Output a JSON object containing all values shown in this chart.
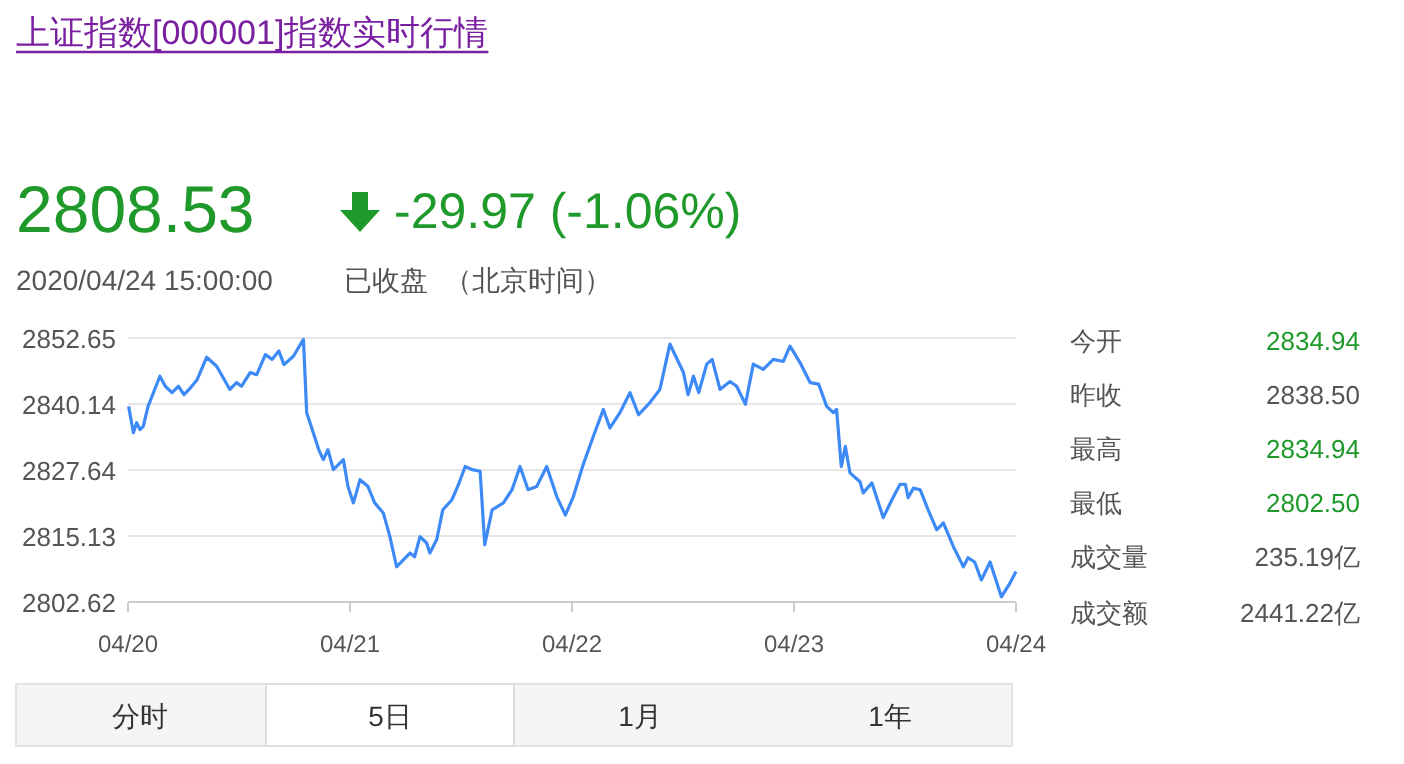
{
  "chart_data": {
    "type": "line",
    "title": "上证指数[000001]指数实时行情",
    "annotations": [
      "2808.53",
      "-29.97 (-1.06%)",
      "2020/04/24 15:00:00",
      "已收盘",
      "（北京时间）",
      "今开",
      "2834.94",
      "昨收",
      "2838.50",
      "最高",
      "2834.94",
      "最低",
      "2802.50",
      "成交量",
      "235.19亿",
      "成交额",
      "2441.22亿",
      "分时",
      "5日",
      "1月",
      "1年"
    ],
    "xlim": [
      "2020-04-20T00:00",
      "2020-04-24T00:00"
    ],
    "xticks": [
      {
        "value": "2020-04-20",
        "label": "04/20"
      },
      {
        "value": "2020-04-21",
        "label": "04/21"
      },
      {
        "value": "2020-04-22",
        "label": "04/22"
      },
      {
        "value": "2020-04-23",
        "label": "04/23"
      },
      {
        "value": "2020-04-24",
        "label": "04/24"
      }
    ],
    "ylim": [
      2802.62,
      2852.65
    ],
    "yticks": [
      2802.62,
      2815.13,
      2827.64,
      2840.14,
      2852.65
    ],
    "grid": "y",
    "marker": "none",
    "line_style": "solid",
    "series": [
      {
        "color": "#3d8af7",
        "x": [
          "2020-04-20T00:04",
          "2020-04-20T00:35",
          "2020-04-20T00:56",
          "2020-04-20T01:18",
          "2020-04-20T01:39",
          "2020-04-20T02:10",
          "2020-04-20T03:27",
          "2020-04-20T04:02",
          "2020-04-20T04:45",
          "2020-04-20T05:28",
          "2020-04-20T06:03",
          "2020-04-20T06:42",
          "2020-04-20T07:29",
          "2020-04-20T08:30",
          "2020-04-20T09:35",
          "2020-04-20T11:01",
          "2020-04-20T11:44",
          "2020-04-20T12:16",
          "2020-04-20T13:12",
          "2020-04-20T13:55",
          "2020-04-20T14:51",
          "2020-04-20T15:35",
          "2020-04-20T16:18",
          "2020-04-20T16:52",
          "2020-04-20T17:53",
          "2020-04-20T18:58",
          "2020-04-20T19:19",
          "2020-04-20T20:02",
          "2020-04-20T20:37",
          "2020-04-20T21:07",
          "2020-04-20T21:37",
          "2020-04-20T22:12",
          "2020-04-20T23:17",
          "2020-04-20T23:47",
          "2020-04-21T00:22",
          "2020-04-21T01:05",
          "2020-04-21T01:57",
          "2020-04-21T02:40",
          "2020-04-21T03:36",
          "2020-04-21T04:19",
          "2020-04-21T05:02",
          "2020-04-21T05:46",
          "2020-04-21T06:29",
          "2020-04-21T06:59",
          "2020-04-21T07:34",
          "2020-04-21T08:17",
          "2020-04-21T08:38",
          "2020-04-21T09:22",
          "2020-04-21T10:02",
          "2020-04-21T11:01",
          "2020-04-21T11:44",
          "2020-04-21T12:27",
          "2020-04-21T13:12",
          "2020-04-21T14:04",
          "2020-04-21T14:34",
          "2020-04-21T15:22",
          "2020-04-21T16:35",
          "2020-04-21T17:31",
          "2020-04-21T18:23",
          "2020-04-21T19:15",
          "2020-04-21T20:11",
          "2020-04-21T21:16",
          "2020-04-21T22:21",
          "2020-04-21T23:17",
          "2020-04-22T00:09",
          "2020-04-22T01:13",
          "2020-04-22T02:18",
          "2020-04-22T03:23",
          "2020-04-22T04:06",
          "2020-04-22T05:11",
          "2020-04-22T06:16",
          "2020-04-22T07:12",
          "2020-04-22T08:25",
          "2020-04-22T09:30",
          "2020-04-22T10:35",
          "2020-04-22T12:03",
          "2020-04-22T12:33",
          "2020-04-22T13:08",
          "2020-04-22T13:42",
          "2020-04-22T14:34",
          "2020-04-22T15:09",
          "2020-04-22T16:00",
          "2020-04-22T17:05",
          "2020-04-22T17:48",
          "2020-04-22T18:45",
          "2020-04-22T19:36",
          "2020-04-22T20:41",
          "2020-04-22T21:46",
          "2020-04-22T22:51",
          "2020-04-22T23:34",
          "2020-04-23T00:39",
          "2020-04-23T01:44",
          "2020-04-23T02:40",
          "2020-04-23T03:32",
          "2020-04-23T04:15",
          "2020-04-23T04:36",
          "2020-04-23T05:07",
          "2020-04-23T05:33",
          "2020-04-23T06:03",
          "2020-04-23T07:08",
          "2020-04-23T07:29",
          "2020-04-23T08:25",
          "2020-04-23T09:39",
          "2020-04-23T10:35",
          "2020-04-23T11:27",
          "2020-04-23T12:03",
          "2020-04-23T12:20",
          "2020-04-23T12:55",
          "2020-04-23T13:38",
          "2020-04-23T14:30",
          "2020-04-23T15:26",
          "2020-04-23T16:09",
          "2020-04-23T17:14",
          "2020-04-23T18:19",
          "2020-04-23T18:49",
          "2020-04-23T19:32",
          "2020-04-23T20:15",
          "2020-04-23T21:12",
          "2020-04-23T22:25",
          "2020-04-23T23:21",
          "2020-04-24T00:00"
        ],
        "values": [
          2839.7,
          2834.7,
          2836.6,
          2835.3,
          2835.9,
          2839.7,
          2845.4,
          2843.5,
          2842.3,
          2843.5,
          2841.9,
          2843.1,
          2844.8,
          2849.0,
          2847.3,
          2842.9,
          2844.2,
          2843.5,
          2846.1,
          2845.7,
          2849.5,
          2848.6,
          2850.2,
          2847.6,
          2849.2,
          2852.4,
          2838.5,
          2834.7,
          2831.5,
          2829.6,
          2831.5,
          2827.7,
          2829.6,
          2824.5,
          2821.4,
          2825.8,
          2824.5,
          2821.4,
          2819.5,
          2815.0,
          2809.3,
          2810.6,
          2811.9,
          2811.2,
          2815.0,
          2813.8,
          2811.9,
          2814.4,
          2820.1,
          2822.0,
          2824.9,
          2828.3,
          2827.7,
          2827.4,
          2813.5,
          2820.1,
          2821.4,
          2823.9,
          2828.3,
          2823.9,
          2824.5,
          2828.3,
          2822.6,
          2819.1,
          2822.6,
          2828.7,
          2834.0,
          2839.1,
          2835.6,
          2838.5,
          2842.3,
          2838.1,
          2840.4,
          2842.9,
          2851.5,
          2846.1,
          2841.9,
          2845.4,
          2842.3,
          2847.7,
          2848.6,
          2842.9,
          2844.4,
          2843.5,
          2840.1,
          2847.7,
          2846.7,
          2848.6,
          2848.2,
          2851.1,
          2848.0,
          2844.2,
          2843.9,
          2839.7,
          2838.5,
          2839.1,
          2828.3,
          2832.1,
          2827.1,
          2825.4,
          2823.3,
          2825.2,
          2818.6,
          2822.0,
          2824.9,
          2824.9,
          2822.4,
          2824.2,
          2823.9,
          2820.1,
          2816.3,
          2817.6,
          2813.1,
          2809.3,
          2811.0,
          2810.2,
          2806.8,
          2810.2,
          2803.6,
          2806.2,
          2808.4
        ]
      }
    ]
  }
}
